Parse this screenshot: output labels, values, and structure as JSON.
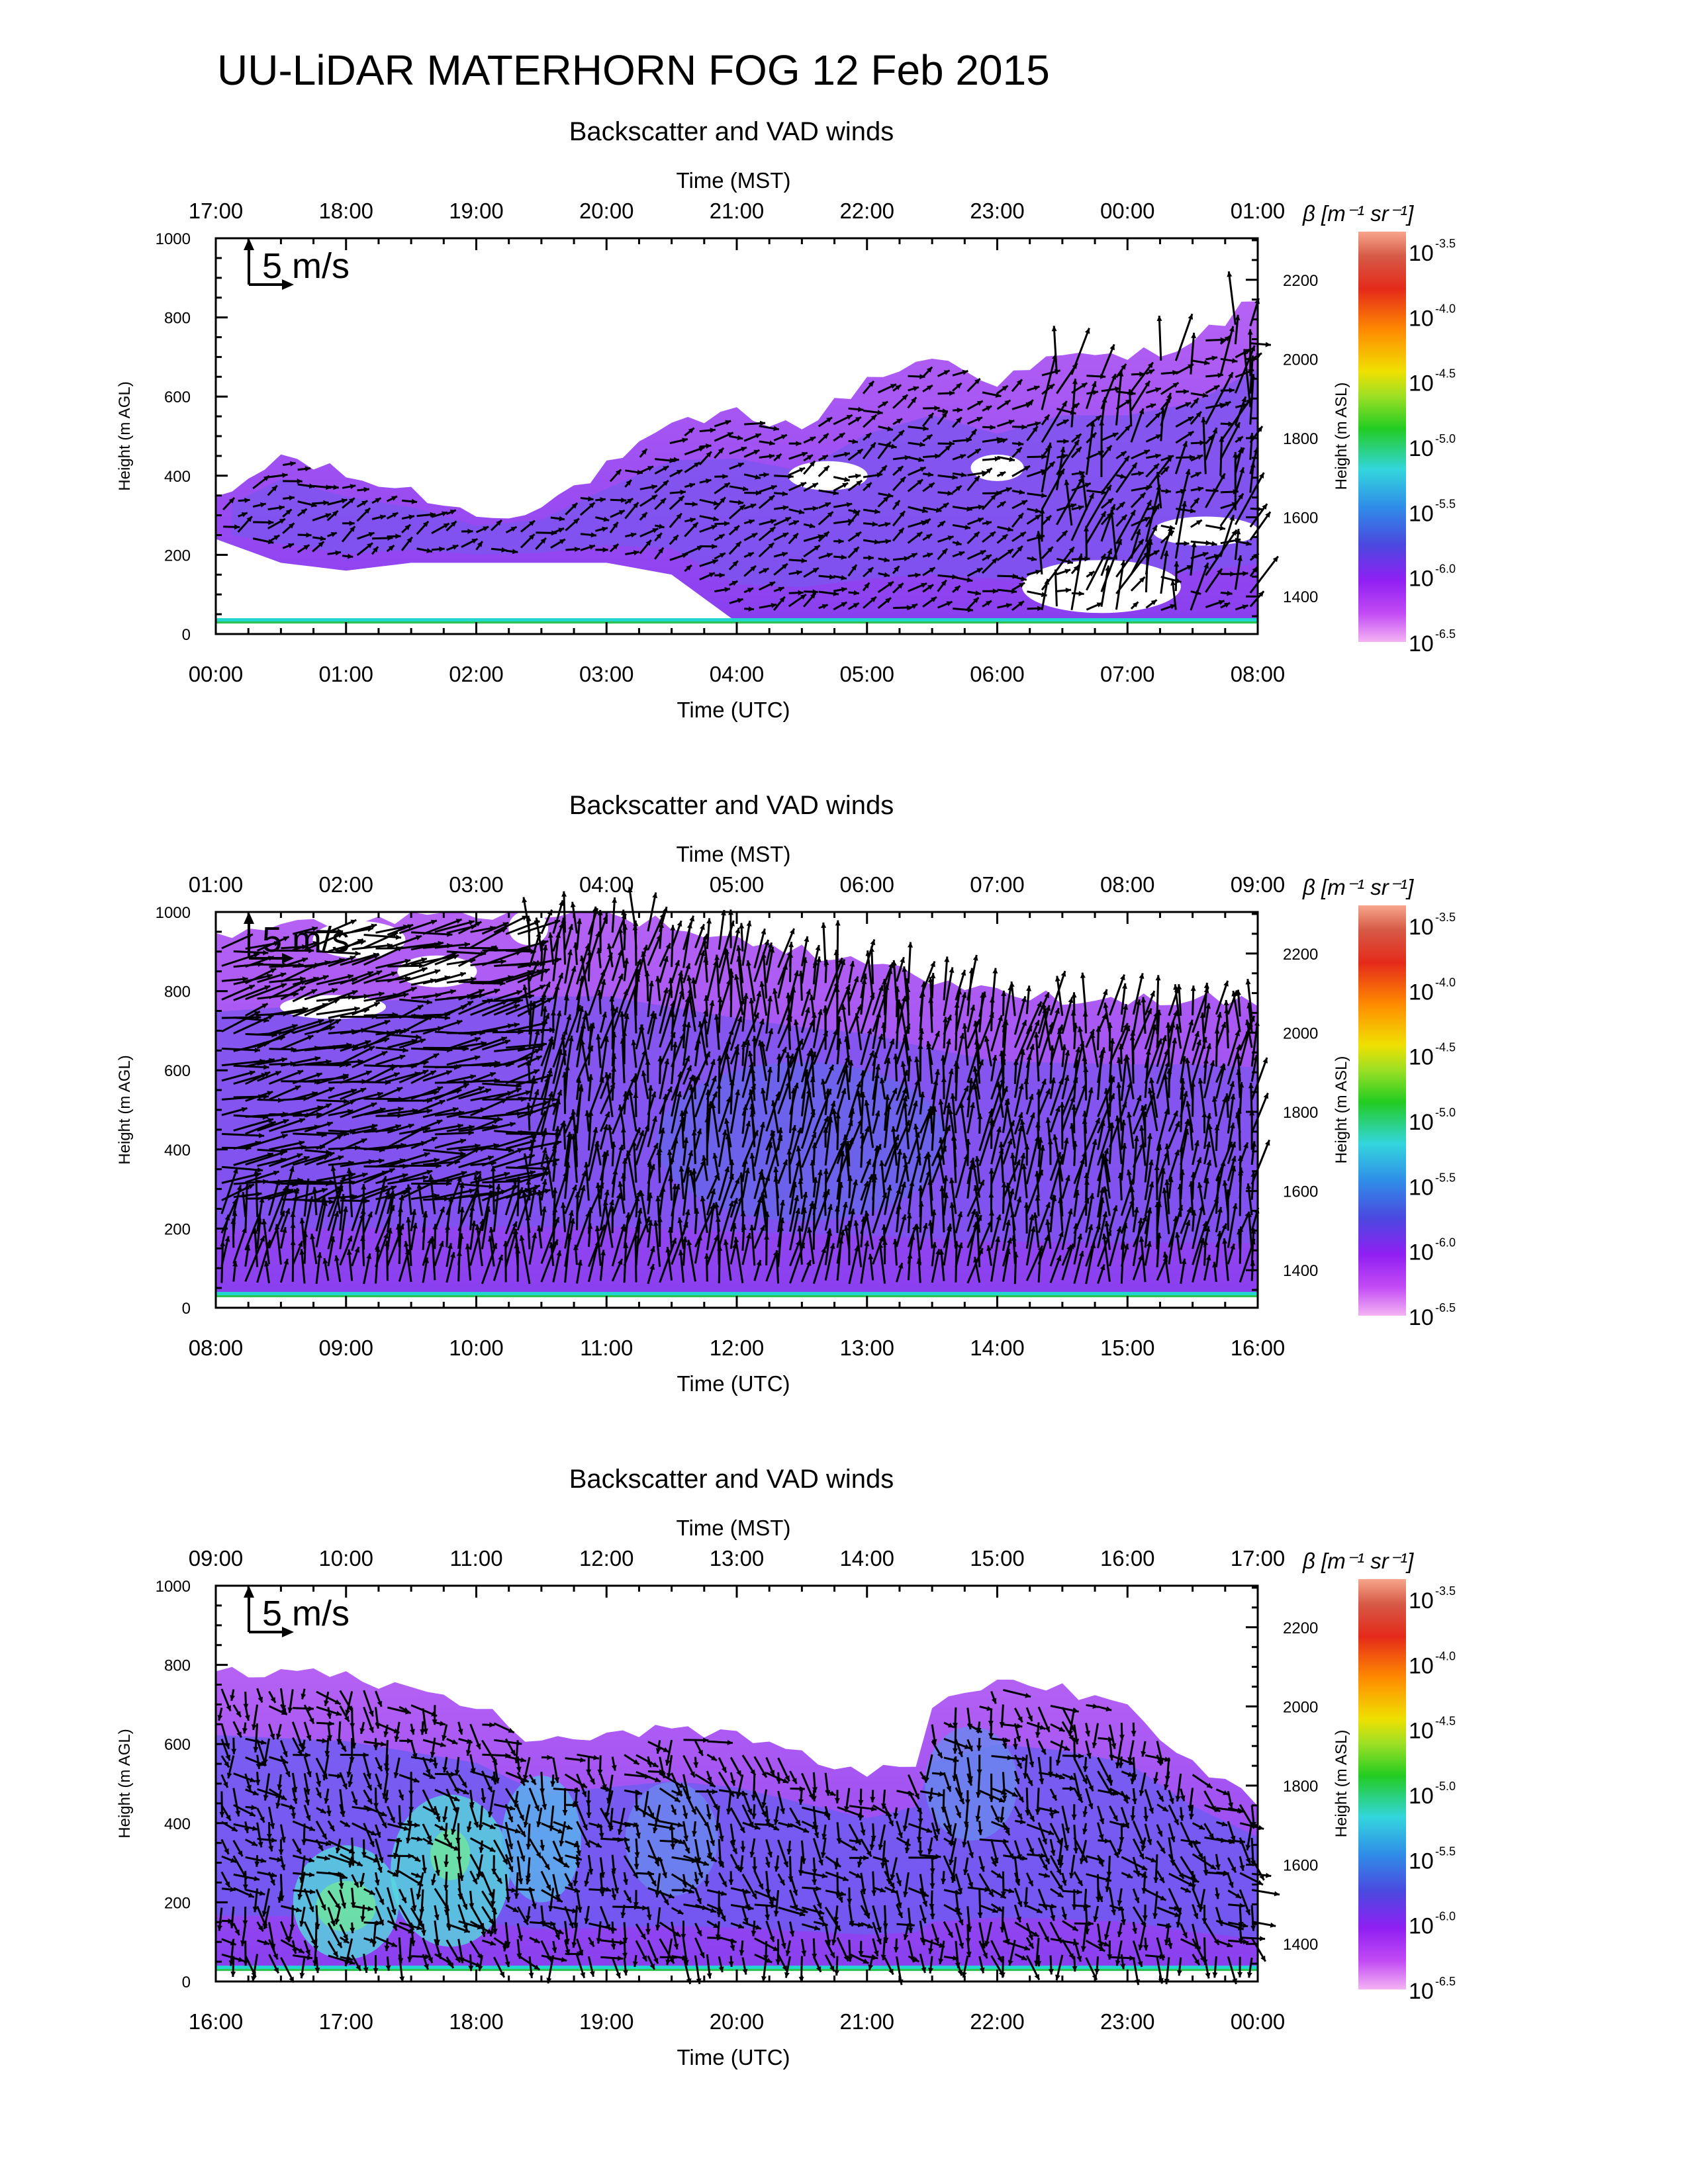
{
  "page": {
    "title": "UU-LiDAR MATERHORN FOG  12 Feb 2015"
  },
  "panel_text": {
    "subtitle": "Backscatter and VAD winds",
    "top_axis_label": "Time (MST)",
    "bottom_axis_label": "Time (UTC)",
    "left_axis_label": "Height (m AGL)",
    "right_axis_label": "Height (m ASL)",
    "scale_arrow_label": "5 m/s",
    "colorbar_label": "β [m⁻¹ sr⁻¹]"
  },
  "colorbar": {
    "base": "10",
    "exponents": [
      "-3.5",
      "-4.0",
      "-4.5",
      "-5.0",
      "-5.5",
      "-6.0",
      "-6.5"
    ],
    "colors": [
      "#f7a58c",
      "#e52a1a",
      "#ff8a00",
      "#e8e000",
      "#22cc22",
      "#33d6dd",
      "#4a4ae0",
      "#8f1ff2",
      "#f2a4f2"
    ]
  },
  "colors": {
    "background_field": "#9a4cf0",
    "field_dark": "#7f3fe6",
    "field_blue": "#5a6ee8",
    "field_cyan": "#55d8dc",
    "field_green": "#5ee690",
    "ground_line": "#22d6d0",
    "arrow": "#000000"
  },
  "chart_data": [
    {
      "type": "heatmap",
      "title": "Backscatter and VAD winds",
      "xlabel": "Time (UTC)",
      "x2label": "Time (MST)",
      "ylabel": "Height (m AGL)",
      "y2label": "Height (m ASL)",
      "x_ticks": [
        "00:00",
        "01:00",
        "02:00",
        "03:00",
        "04:00",
        "05:00",
        "06:00",
        "07:00",
        "08:00"
      ],
      "x2_ticks": [
        "17:00",
        "18:00",
        "19:00",
        "20:00",
        "21:00",
        "22:00",
        "23:00",
        "00:00",
        "01:00"
      ],
      "y_ticks": [
        0,
        200,
        400,
        600,
        800,
        1000
      ],
      "y2_ticks": [
        1400,
        1600,
        1800,
        2000,
        2200
      ],
      "ylim": [
        0,
        1000
      ],
      "xlim_hours": [
        0,
        8
      ],
      "color_scale": "log10 β, -6.5 to -3.5",
      "layer_top_m": [
        [
          0.0,
          330
        ],
        [
          0.5,
          450
        ],
        [
          1.0,
          400
        ],
        [
          1.5,
          360
        ],
        [
          2.0,
          300
        ],
        [
          2.5,
          320
        ],
        [
          3.0,
          420
        ],
        [
          3.5,
          520
        ],
        [
          4.0,
          560
        ],
        [
          4.5,
          520
        ],
        [
          5.0,
          640
        ],
        [
          5.5,
          700
        ],
        [
          6.0,
          640
        ],
        [
          6.5,
          700
        ],
        [
          7.0,
          700
        ],
        [
          7.5,
          740
        ],
        [
          8.0,
          850
        ]
      ],
      "layer_base_m": [
        [
          0.0,
          240
        ],
        [
          0.5,
          180
        ],
        [
          1.0,
          160
        ],
        [
          1.5,
          180
        ],
        [
          2.0,
          180
        ],
        [
          2.5,
          180
        ],
        [
          3.0,
          180
        ],
        [
          3.5,
          150
        ],
        [
          4.0,
          30
        ],
        [
          4.5,
          30
        ],
        [
          5.0,
          30
        ],
        [
          5.5,
          30
        ],
        [
          6.0,
          30
        ],
        [
          6.5,
          30
        ],
        [
          7.0,
          30
        ],
        [
          7.5,
          30
        ],
        [
          8.0,
          30
        ]
      ]
    },
    {
      "type": "heatmap",
      "title": "Backscatter and VAD winds",
      "xlabel": "Time (UTC)",
      "x2label": "Time (MST)",
      "ylabel": "Height (m AGL)",
      "y2label": "Height (m ASL)",
      "x_ticks": [
        "08:00",
        "09:00",
        "10:00",
        "11:00",
        "12:00",
        "13:00",
        "14:00",
        "15:00",
        "16:00"
      ],
      "x2_ticks": [
        "01:00",
        "02:00",
        "03:00",
        "04:00",
        "05:00",
        "06:00",
        "07:00",
        "08:00",
        "09:00"
      ],
      "y_ticks": [
        0,
        200,
        400,
        600,
        800,
        1000
      ],
      "y2_ticks": [
        1400,
        1600,
        1800,
        2000,
        2200
      ],
      "ylim": [
        0,
        1000
      ],
      "xlim_hours": [
        8,
        16
      ],
      "color_scale": "log10 β, -6.5 to -3.5",
      "layer_top_m": [
        [
          8.0,
          950
        ],
        [
          9.0,
          980
        ],
        [
          10.0,
          1000
        ],
        [
          11.0,
          1000
        ],
        [
          12.0,
          930
        ],
        [
          12.5,
          900
        ],
        [
          13.0,
          880
        ],
        [
          13.5,
          830
        ],
        [
          14.0,
          790
        ],
        [
          15.0,
          780
        ],
        [
          15.5,
          780
        ],
        [
          16.0,
          770
        ]
      ],
      "layer_base_m": [
        [
          8.0,
          30
        ],
        [
          16.0,
          30
        ]
      ]
    },
    {
      "type": "heatmap",
      "title": "Backscatter and VAD winds",
      "xlabel": "Time (UTC)",
      "x2label": "Time (MST)",
      "ylabel": "Height (m AGL)",
      "y2label": "Height (m ASL)",
      "x_ticks": [
        "16:00",
        "17:00",
        "18:00",
        "19:00",
        "20:00",
        "21:00",
        "22:00",
        "23:00",
        "00:00"
      ],
      "x2_ticks": [
        "09:00",
        "10:00",
        "11:00",
        "12:00",
        "13:00",
        "14:00",
        "15:00",
        "16:00",
        "17:00"
      ],
      "y_ticks": [
        0,
        200,
        400,
        600,
        800,
        1000
      ],
      "y2_ticks": [
        1400,
        1600,
        1800,
        2000,
        2200
      ],
      "ylim": [
        0,
        1000
      ],
      "xlim_hours": [
        16,
        24
      ],
      "color_scale": "log10 β, -6.5 to -3.5",
      "layer_top_m": [
        [
          16.0,
          790
        ],
        [
          17.0,
          770
        ],
        [
          18.0,
          700
        ],
        [
          18.5,
          600
        ],
        [
          19.0,
          620
        ],
        [
          19.5,
          640
        ],
        [
          20.0,
          620
        ],
        [
          20.5,
          570
        ],
        [
          21.0,
          520
        ],
        [
          21.4,
          560
        ],
        [
          21.5,
          700
        ],
        [
          22.0,
          760
        ],
        [
          22.5,
          740
        ],
        [
          23.0,
          700
        ],
        [
          23.5,
          560
        ],
        [
          24.0,
          460
        ]
      ],
      "layer_base_m": [
        [
          16.0,
          30
        ],
        [
          24.0,
          30
        ]
      ]
    }
  ]
}
